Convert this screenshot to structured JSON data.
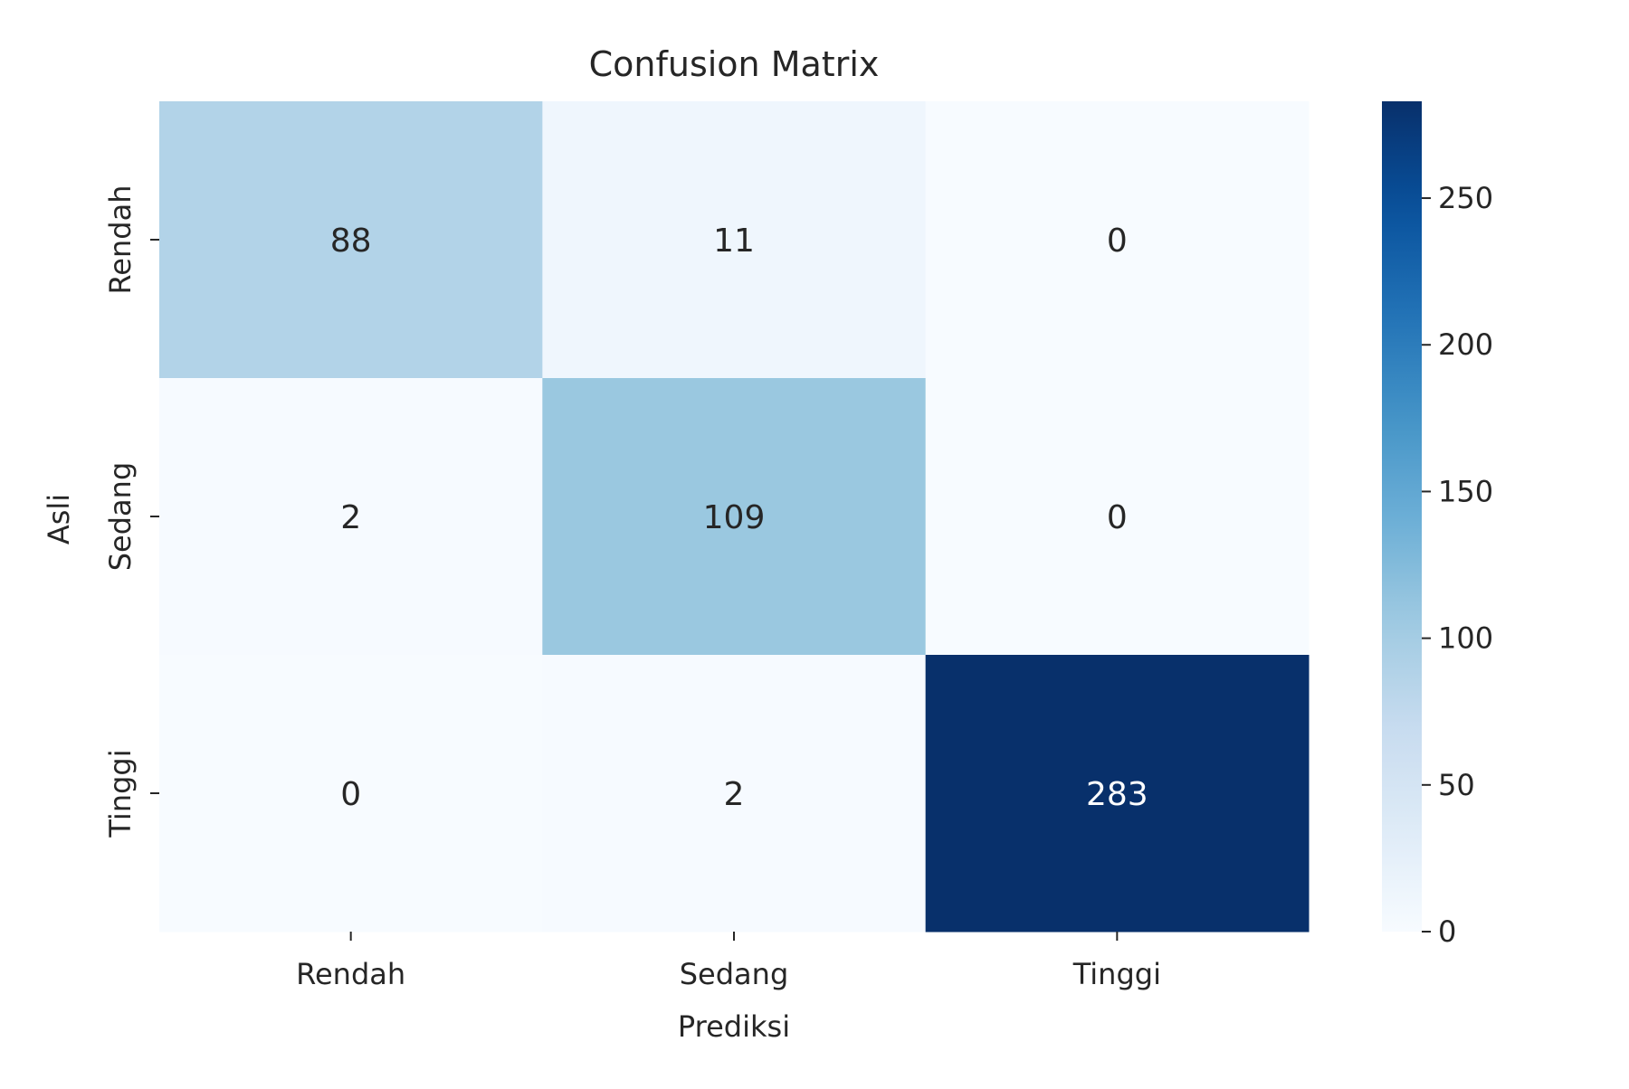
{
  "chart_data": {
    "type": "heatmap",
    "title": "Confusion Matrix",
    "xlabel": "Prediksi",
    "ylabel": "Asli",
    "x_categories": [
      "Rendah",
      "Sedang",
      "Tinggi"
    ],
    "y_categories": [
      "Rendah",
      "Sedang",
      "Tinggi"
    ],
    "values": [
      [
        88,
        11,
        0
      ],
      [
        2,
        109,
        0
      ],
      [
        0,
        2,
        283
      ]
    ],
    "colormap": "Blues",
    "colorbar": {
      "range": [
        0,
        283
      ],
      "ticks": [
        0,
        50,
        100,
        150,
        200,
        250
      ]
    },
    "colors": {
      "low": "#f7fbff",
      "high": "#08306b",
      "text_dark": "#262626",
      "text_light": "#ffffff"
    }
  }
}
